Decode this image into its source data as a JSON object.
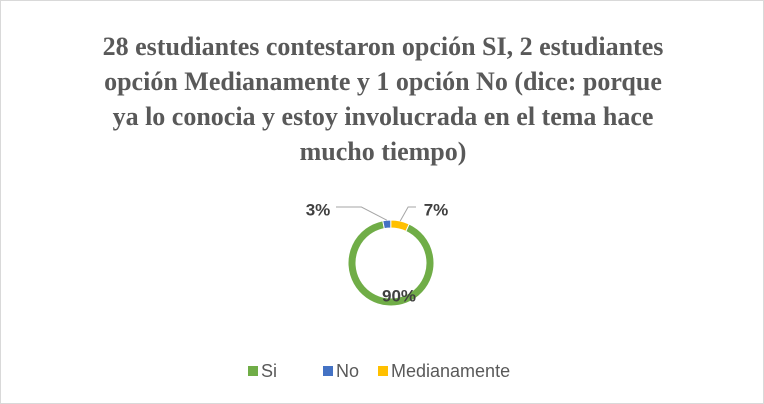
{
  "chart_data": {
    "type": "pie",
    "title": "28 estudiantes contestaron opción SI, 2 estudiantes opción Medianamente y 1 opción No (dice: porque ya lo conocia y estoy involucrada en el tema hace mucho tiempo)",
    "categories": [
      "Si",
      "No",
      "Medianamente"
    ],
    "values": [
      90,
      3,
      7
    ],
    "value_labels": [
      "90%",
      "3%",
      "7%"
    ],
    "colors": [
      "#70ad47",
      "#4472c4",
      "#ffc000"
    ],
    "donut": true,
    "legend": "bottom"
  }
}
